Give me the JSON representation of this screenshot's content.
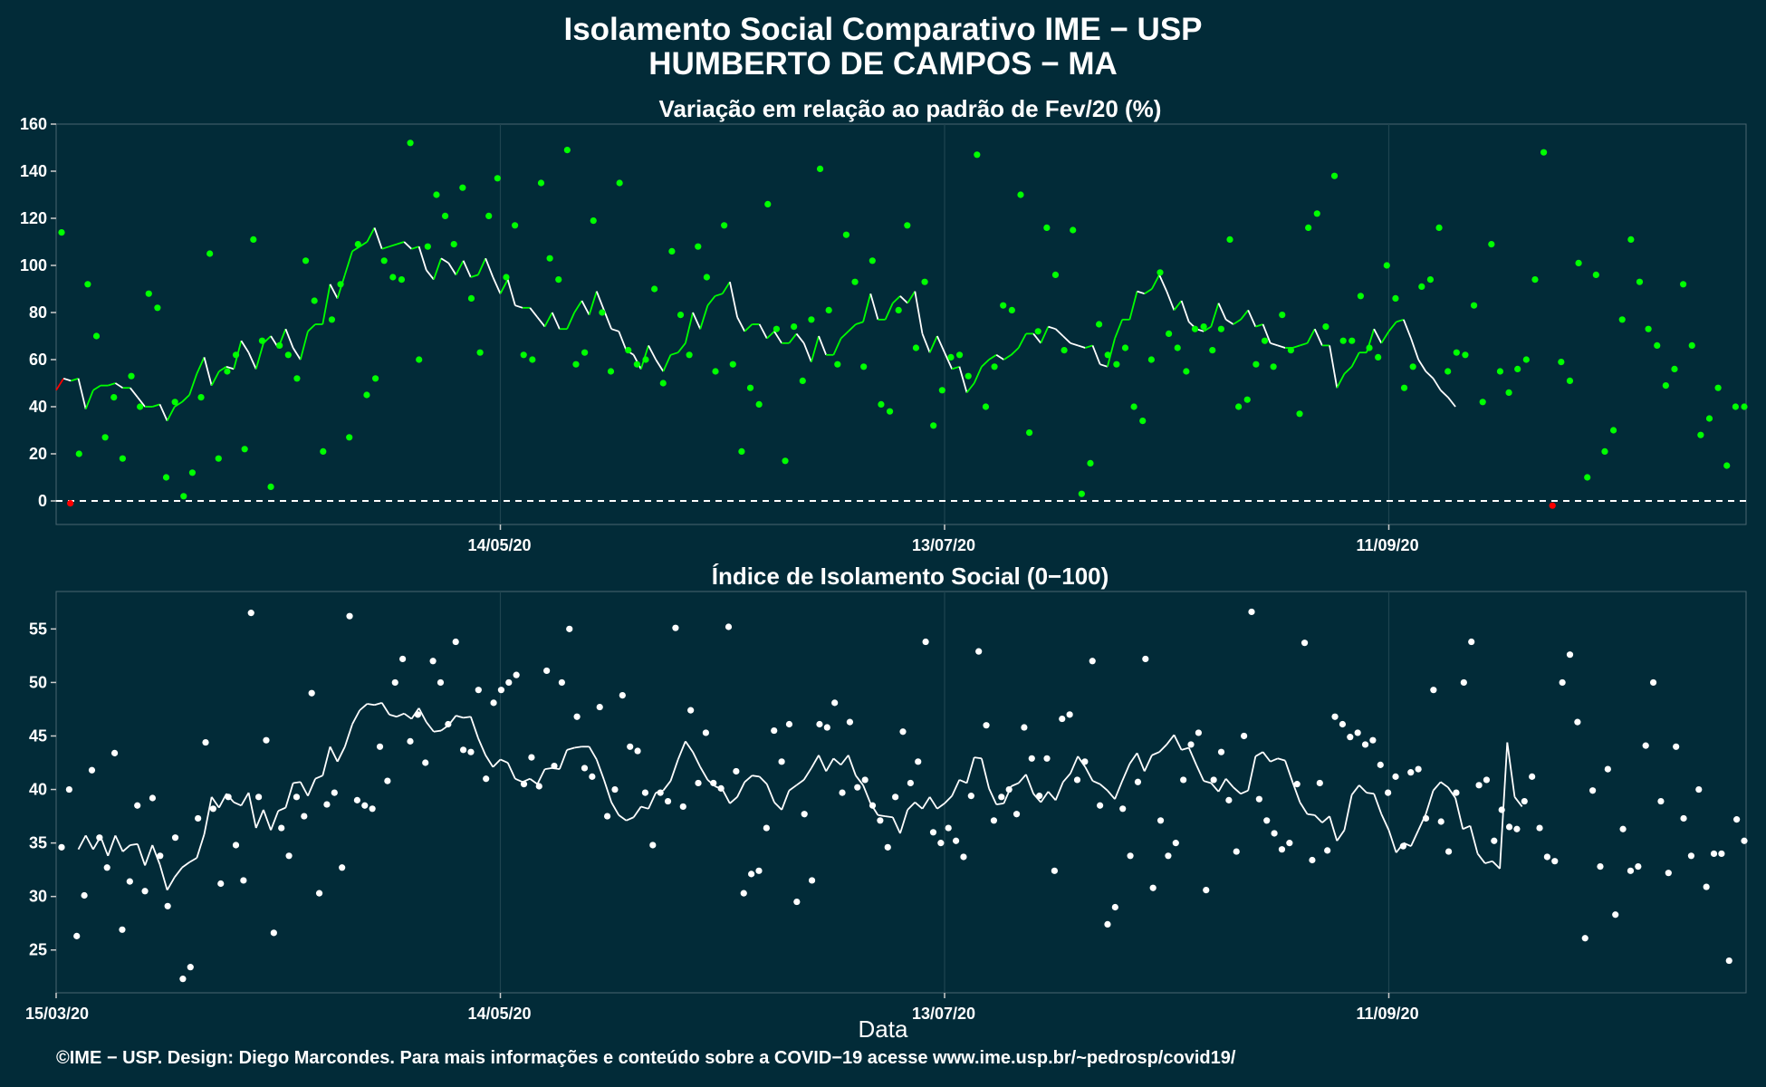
{
  "title_line1": "Isolamento Social Comparativo IME − USP",
  "title_line2": "HUMBERTO DE CAMPOS − MA",
  "xlabel": "Data",
  "caption": "©IME − USP. Design: Diego Marcondes. Para mais informações e conteúdo sobre a COVID−19 acesse www.ime.usp.br/~pedrosp/covid19/",
  "colors": {
    "background": "#022b38",
    "panel": "#022b38",
    "grid": "#1f4450",
    "points_top": "#00ff00",
    "line_top_green": "#00ff00",
    "line_top_white": "#ffffff",
    "negative_red": "#ff0000",
    "points_bottom": "#ffffff",
    "line_bottom": "#ffffff"
  },
  "chart_data": [
    {
      "type": "scatter",
      "title": "Variação em relação ao padrão de Fev/20 (%)",
      "xlabel": "",
      "ylabel": "",
      "x_start": "15/03/20",
      "ylim": [
        -10,
        160
      ],
      "yticks": [
        0,
        20,
        40,
        60,
        80,
        100,
        120,
        140,
        160
      ],
      "xticks": [
        "14/05/20",
        "13/07/20",
        "11/09/20"
      ],
      "reference_line": 0,
      "grid": true,
      "series": [
        {
          "kind": "points",
          "values": [
            114,
            -1,
            20,
            92,
            70,
            27,
            44,
            18,
            53,
            40,
            88,
            82,
            10,
            42,
            2,
            12,
            44,
            105,
            18,
            55,
            62,
            22,
            111,
            68,
            6,
            66,
            62,
            52,
            102,
            85,
            21,
            77,
            92,
            27,
            109,
            45,
            52,
            102,
            95,
            94,
            152,
            60,
            108,
            130,
            121,
            109,
            133,
            86,
            63,
            121,
            137,
            95,
            117,
            62,
            60,
            135,
            103,
            94,
            149,
            58,
            63,
            119,
            80,
            55,
            135,
            64,
            58,
            60,
            90,
            50,
            106,
            79,
            62,
            108,
            95,
            55,
            117,
            58,
            21,
            48,
            41,
            126,
            73,
            17,
            74,
            51,
            77,
            141,
            81,
            58,
            113,
            93,
            57,
            102,
            41,
            38,
            81,
            117,
            65,
            93,
            32,
            47,
            61,
            62,
            53,
            147,
            40,
            57,
            83,
            81,
            130,
            29,
            72,
            116,
            96,
            64,
            115,
            3,
            16,
            75,
            62,
            58,
            65,
            40,
            34,
            60,
            97,
            71,
            65,
            55,
            73,
            74,
            64,
            73,
            111,
            40,
            43,
            58,
            68,
            57,
            79,
            64,
            37,
            116,
            122,
            74,
            138,
            68,
            68,
            87,
            65,
            61,
            100,
            86,
            48,
            57,
            91,
            94,
            116,
            55,
            63,
            62,
            83,
            42,
            109,
            55,
            46,
            56,
            60,
            94,
            148,
            -2,
            59,
            51,
            101,
            10,
            96,
            21,
            30,
            77,
            111,
            93,
            73,
            66,
            49,
            56,
            92,
            66,
            28,
            35,
            48,
            15,
            40,
            40
          ]
        },
        {
          "kind": "moving_average",
          "values": [
            47,
            52,
            51,
            52,
            39,
            47,
            49,
            49,
            50,
            48,
            48,
            44,
            40,
            40,
            41,
            34,
            40,
            42,
            45,
            54,
            61,
            49,
            55,
            57,
            56,
            68,
            63,
            56,
            67,
            70,
            65,
            73,
            65,
            60,
            72,
            75,
            75,
            92,
            86,
            96,
            106,
            108,
            110,
            116,
            107,
            108,
            109,
            110,
            107,
            108,
            98,
            94,
            103,
            101,
            96,
            102,
            95,
            96,
            103,
            95,
            88,
            94,
            83,
            82,
            82,
            78,
            74,
            80,
            73,
            73,
            80,
            85,
            79,
            89,
            81,
            73,
            72,
            64,
            62,
            56,
            66,
            60,
            55,
            62,
            63,
            67,
            80,
            73,
            83,
            87,
            88,
            93,
            78,
            72,
            75,
            75,
            69,
            72,
            67,
            67,
            71,
            67,
            59,
            70,
            62,
            62,
            69,
            72,
            75,
            76,
            88,
            77,
            77,
            84,
            87,
            84,
            89,
            71,
            63,
            70,
            63,
            56,
            57,
            46,
            50,
            57,
            60,
            62,
            60,
            62,
            65,
            71,
            71,
            67,
            74,
            73,
            70,
            67,
            66,
            65,
            66,
            58,
            57,
            69,
            77,
            77,
            89,
            88,
            90,
            96,
            89,
            81,
            85,
            76,
            73,
            72,
            74,
            84,
            77,
            75,
            77,
            81,
            74,
            75,
            67,
            66,
            65,
            65,
            66,
            67,
            73,
            66,
            66,
            48,
            54,
            57,
            63,
            63,
            73,
            67,
            72,
            76,
            77,
            69,
            60,
            55,
            52,
            47,
            44,
            40
          ]
        }
      ]
    },
    {
      "type": "scatter",
      "title": "Índice de Isolamento Social (0−100)",
      "xlabel": "Data",
      "ylabel": "",
      "x_start": "15/03/20",
      "ylim": [
        21,
        58.5
      ],
      "yticks": [
        25,
        30,
        35,
        40,
        45,
        50,
        55
      ],
      "xticks": [
        "15/03/20",
        "14/05/20",
        "13/07/20",
        "11/09/20"
      ],
      "grid": true,
      "series": [
        {
          "kind": "points",
          "values": [
            34.6,
            40.0,
            26.3,
            30.1,
            41.8,
            35.5,
            32.7,
            43.4,
            26.9,
            31.4,
            38.5,
            30.5,
            39.2,
            33.8,
            29.1,
            35.5,
            22.3,
            23.4,
            37.3,
            44.4,
            38.2,
            31.2,
            39.3,
            34.8,
            31.5,
            56.5,
            39.3,
            44.6,
            26.6,
            36.4,
            33.8,
            39.3,
            37.5,
            49.0,
            30.3,
            38.6,
            39.7,
            32.7,
            56.2,
            39.0,
            38.5,
            38.2,
            44.0,
            40.8,
            50.0,
            52.2,
            44.5,
            47.0,
            42.5,
            52.0,
            50.0,
            46.1,
            53.8,
            43.7,
            43.5,
            49.3,
            41.0,
            48.1,
            49.3,
            50.0,
            50.7,
            40.5,
            43.0,
            40.3,
            51.1,
            42.2,
            50.0,
            55.0,
            46.8,
            42.0,
            41.2,
            47.7,
            37.5,
            40.0,
            48.8,
            44.0,
            43.6,
            39.7,
            34.8,
            39.7,
            38.9,
            55.1,
            38.4,
            47.4,
            40.6,
            45.3,
            40.6,
            40.1,
            55.2,
            41.7,
            30.3,
            32.1,
            32.4,
            36.4,
            45.5,
            42.6,
            46.1,
            29.5,
            37.7,
            31.5,
            46.1,
            45.8,
            48.1,
            39.7,
            46.3,
            40.2,
            40.9,
            38.5,
            37.1,
            34.6,
            39.3,
            45.4,
            40.6,
            42.6,
            53.8,
            36.0,
            35.0,
            36.4,
            35.2,
            33.7,
            39.4,
            52.9,
            46.0,
            37.1,
            39.3,
            40.0,
            37.7,
            45.8,
            42.9,
            39.4,
            42.9,
            32.4,
            46.6,
            47.0,
            40.9,
            42.6,
            52.0,
            38.5,
            27.4,
            29.0,
            38.2,
            33.8,
            40.7,
            52.2,
            30.8,
            37.1,
            33.8,
            35.0,
            40.9,
            44.2,
            45.3,
            30.6,
            40.9,
            43.5,
            39.0,
            34.2,
            45.0,
            56.6,
            39.1,
            37.1,
            35.9,
            34.4,
            35.0,
            40.5,
            53.7,
            33.4,
            40.6,
            34.3,
            46.8,
            46.1,
            44.9,
            45.3,
            44.2,
            44.6,
            42.3,
            39.7,
            41.2,
            34.7,
            41.6,
            41.9,
            37.3,
            49.3,
            37.0,
            34.2,
            39.7,
            50.0,
            53.8,
            40.4,
            40.9,
            35.2,
            38.1,
            36.5,
            36.3,
            38.9,
            41.2,
            36.4,
            33.7,
            33.3,
            50.0,
            52.6,
            46.3,
            26.1,
            39.9,
            32.8,
            41.9,
            28.3,
            36.3,
            32.4,
            32.8,
            44.1,
            50.0,
            38.9,
            32.2,
            44.0,
            37.3,
            33.8,
            40.0,
            30.9,
            34.0,
            34.0,
            24.0,
            37.2,
            35.2
          ]
        },
        {
          "kind": "moving_average",
          "values": [
            34.4,
            35.7,
            34.4,
            35.6,
            33.8,
            35.7,
            34.2,
            34.8,
            34.9,
            32.9,
            34.8,
            33.0,
            30.6,
            31.8,
            32.7,
            33.2,
            33.6,
            35.8,
            39.3,
            38.3,
            39.6,
            38.8,
            38.5,
            39.7,
            36.4,
            38.1,
            36.2,
            38.0,
            38.3,
            40.6,
            40.7,
            39.4,
            41.0,
            41.3,
            44.0,
            42.6,
            44.0,
            46.1,
            47.4,
            48.0,
            47.9,
            48.1,
            47.0,
            46.8,
            47.1,
            46.6,
            47.6,
            46.3,
            45.4,
            45.5,
            46.0,
            46.9,
            46.7,
            46.8,
            44.8,
            43.2,
            42.1,
            42.8,
            42.5,
            41.0,
            40.7,
            41.0,
            40.5,
            41.9,
            42.0,
            41.9,
            43.7,
            43.9,
            44.0,
            44.0,
            42.8,
            40.9,
            38.8,
            37.6,
            37.1,
            37.4,
            38.4,
            38.2,
            39.7,
            39.9,
            40.8,
            42.8,
            44.5,
            43.5,
            42.1,
            40.9,
            40.3,
            40.0,
            38.7,
            39.3,
            40.7,
            41.3,
            41.2,
            40.5,
            38.8,
            38.1,
            39.9,
            40.4,
            40.9,
            42.0,
            43.2,
            41.7,
            42.9,
            42.3,
            43.2,
            41.3,
            40.4,
            38.7,
            37.6,
            37.5,
            37.4,
            35.9,
            38.1,
            38.8,
            38.2,
            39.3,
            38.2,
            38.7,
            39.4,
            40.9,
            40.6,
            43.0,
            42.9,
            40.1,
            38.6,
            38.7,
            40.3,
            40.6,
            41.4,
            39.6,
            38.8,
            39.8,
            39.0,
            40.7,
            41.5,
            43.1,
            42.1,
            40.8,
            40.5,
            39.9,
            39.1,
            40.8,
            42.4,
            43.4,
            41.7,
            43.2,
            43.5,
            44.2,
            45.1,
            43.7,
            43.9,
            42.3,
            40.8,
            40.6,
            39.8,
            41.0,
            40.2,
            39.6,
            39.9,
            43.1,
            43.5,
            42.6,
            42.9,
            42.7,
            40.7,
            38.8,
            37.7,
            37.6,
            36.9,
            37.5,
            35.2,
            36.2,
            39.5,
            40.4,
            39.7,
            39.6,
            37.7,
            36.2,
            34.1,
            35.0,
            34.7,
            36.2,
            37.7,
            39.9,
            40.7,
            40.2,
            39.2,
            36.3,
            36.6,
            34.0,
            33.1,
            33.3,
            32.6,
            44.4,
            39.3,
            38.4
          ]
        }
      ]
    }
  ]
}
